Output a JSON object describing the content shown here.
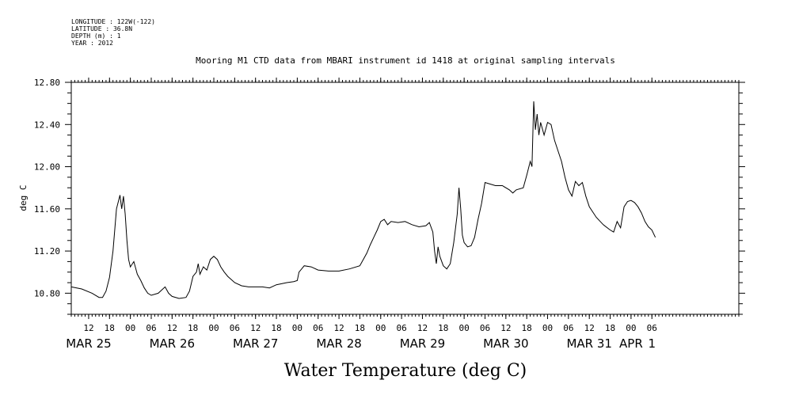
{
  "meta_lines": [
    "LONGITUDE : 122W(-122)",
    "LATITUDE : 36.8N",
    "DEPTH (m) : 1",
    "YEAR : 2012"
  ],
  "chart_data": {
    "type": "line",
    "title": "Mooring M1 CTD data from MBARI instrument id 1418 at original sampling intervals",
    "xlabel": "Water Temperature (deg C)",
    "ylabel": "deg C",
    "xlim": [
      "2012-03-24T07:00",
      "2012-04-01T07:00"
    ],
    "ylim": [
      10.6,
      12.8
    ],
    "yticks": [
      10.8,
      11.2,
      11.6,
      12.0,
      12.4,
      12.8
    ],
    "ytick_labels": [
      "10.80",
      "11.20",
      "11.60",
      "12.00",
      "12.40",
      "12.80"
    ],
    "xticks": [
      {
        "t": "2012-03-24T12:00",
        "label": "12"
      },
      {
        "t": "2012-03-24T18:00",
        "label": "18"
      },
      {
        "t": "2012-03-25T00:00",
        "label": "00"
      },
      {
        "t": "2012-03-25T06:00",
        "label": "06"
      },
      {
        "t": "2012-03-25T12:00",
        "label": "12"
      },
      {
        "t": "2012-03-25T18:00",
        "label": "18"
      },
      {
        "t": "2012-03-26T00:00",
        "label": "00"
      },
      {
        "t": "2012-03-26T06:00",
        "label": "06"
      },
      {
        "t": "2012-03-26T12:00",
        "label": "12"
      },
      {
        "t": "2012-03-26T18:00",
        "label": "18"
      },
      {
        "t": "2012-03-27T00:00",
        "label": "00"
      },
      {
        "t": "2012-03-27T06:00",
        "label": "06"
      },
      {
        "t": "2012-03-27T12:00",
        "label": "12"
      },
      {
        "t": "2012-03-27T18:00",
        "label": "18"
      },
      {
        "t": "2012-03-28T00:00",
        "label": "00"
      },
      {
        "t": "2012-03-28T06:00",
        "label": "06"
      },
      {
        "t": "2012-03-28T12:00",
        "label": "12"
      },
      {
        "t": "2012-03-28T18:00",
        "label": "18"
      },
      {
        "t": "2012-03-29T00:00",
        "label": "00"
      },
      {
        "t": "2012-03-29T06:00",
        "label": "06"
      },
      {
        "t": "2012-03-29T12:00",
        "label": "12"
      },
      {
        "t": "2012-03-29T18:00",
        "label": "18"
      },
      {
        "t": "2012-03-30T00:00",
        "label": "00"
      },
      {
        "t": "2012-03-30T06:00",
        "label": "06"
      },
      {
        "t": "2012-03-30T12:00",
        "label": "12"
      },
      {
        "t": "2012-03-30T18:00",
        "label": "18"
      },
      {
        "t": "2012-03-31T00:00",
        "label": "00"
      },
      {
        "t": "2012-03-31T06:00",
        "label": "06"
      }
    ],
    "day_labels": [
      {
        "t": "2012-03-24T12:00",
        "label": "MAR 25"
      },
      {
        "t": "2012-03-25T12:00",
        "label": "MAR 26"
      },
      {
        "t": "2012-03-26T12:00",
        "label": "MAR 27"
      },
      {
        "t": "2012-03-27T12:00",
        "label": "MAR 28"
      },
      {
        "t": "2012-03-28T12:00",
        "label": "MAR 29"
      },
      {
        "t": "2012-03-29T12:00",
        "label": "MAR 30"
      },
      {
        "t": "2012-03-30T12:00",
        "label": "MAR 31"
      },
      {
        "t": "2012-03-31T00:00",
        "label": "APR"
      },
      {
        "t": "2012-03-31T06:00",
        "label": "1"
      }
    ],
    "grid": false,
    "series": [
      {
        "color": "#000000",
        "points": [
          [
            "2012-03-24T07:00",
            10.86
          ],
          [
            "2012-03-24T10:00",
            10.84
          ],
          [
            "2012-03-24T13:00",
            10.8
          ],
          [
            "2012-03-24T15:00",
            10.76
          ],
          [
            "2012-03-24T16:00",
            10.76
          ],
          [
            "2012-03-24T17:00",
            10.82
          ],
          [
            "2012-03-24T18:00",
            10.95
          ],
          [
            "2012-03-24T19:00",
            11.2
          ],
          [
            "2012-03-24T20:00",
            11.6
          ],
          [
            "2012-03-24T21:00",
            11.73
          ],
          [
            "2012-03-24T21:30",
            11.6
          ],
          [
            "2012-03-24T22:00",
            11.72
          ],
          [
            "2012-03-24T22:30",
            11.55
          ],
          [
            "2012-03-24T23:00",
            11.3
          ],
          [
            "2012-03-24T23:30",
            11.12
          ],
          [
            "2012-03-25T00:00",
            11.05
          ],
          [
            "2012-03-25T01:00",
            11.1
          ],
          [
            "2012-03-25T02:00",
            10.98
          ],
          [
            "2012-03-25T03:00",
            10.92
          ],
          [
            "2012-03-25T04:00",
            10.85
          ],
          [
            "2012-03-25T05:00",
            10.8
          ],
          [
            "2012-03-25T06:00",
            10.78
          ],
          [
            "2012-03-25T08:00",
            10.8
          ],
          [
            "2012-03-25T10:00",
            10.86
          ],
          [
            "2012-03-25T11:00",
            10.8
          ],
          [
            "2012-03-25T12:00",
            10.77
          ],
          [
            "2012-03-25T14:00",
            10.75
          ],
          [
            "2012-03-25T16:00",
            10.76
          ],
          [
            "2012-03-25T17:00",
            10.82
          ],
          [
            "2012-03-25T18:00",
            10.96
          ],
          [
            "2012-03-25T19:00",
            11.0
          ],
          [
            "2012-03-25T19:30",
            11.08
          ],
          [
            "2012-03-25T20:00",
            10.98
          ],
          [
            "2012-03-25T21:00",
            11.05
          ],
          [
            "2012-03-25T22:00",
            11.02
          ],
          [
            "2012-03-25T23:00",
            11.12
          ],
          [
            "2012-03-26T00:00",
            11.15
          ],
          [
            "2012-03-26T01:00",
            11.12
          ],
          [
            "2012-03-26T02:00",
            11.05
          ],
          [
            "2012-03-26T03:00",
            11.0
          ],
          [
            "2012-03-26T04:00",
            10.96
          ],
          [
            "2012-03-26T06:00",
            10.9
          ],
          [
            "2012-03-26T08:00",
            10.87
          ],
          [
            "2012-03-26T10:00",
            10.86
          ],
          [
            "2012-03-26T14:00",
            10.86
          ],
          [
            "2012-03-26T16:00",
            10.85
          ],
          [
            "2012-03-26T18:00",
            10.88
          ],
          [
            "2012-03-26T21:00",
            10.9
          ],
          [
            "2012-03-26T23:00",
            10.91
          ],
          [
            "2012-03-27T00:00",
            10.92
          ],
          [
            "2012-03-27T00:30",
            11.0
          ],
          [
            "2012-03-27T02:00",
            11.06
          ],
          [
            "2012-03-27T04:00",
            11.05
          ],
          [
            "2012-03-27T06:00",
            11.02
          ],
          [
            "2012-03-27T09:00",
            11.01
          ],
          [
            "2012-03-27T12:00",
            11.01
          ],
          [
            "2012-03-27T15:00",
            11.03
          ],
          [
            "2012-03-27T18:00",
            11.06
          ],
          [
            "2012-03-27T19:00",
            11.12
          ],
          [
            "2012-03-27T20:00",
            11.18
          ],
          [
            "2012-03-27T21:00",
            11.26
          ],
          [
            "2012-03-27T22:00",
            11.33
          ],
          [
            "2012-03-27T23:00",
            11.4
          ],
          [
            "2012-03-28T00:00",
            11.48
          ],
          [
            "2012-03-28T01:00",
            11.5
          ],
          [
            "2012-03-28T02:00",
            11.45
          ],
          [
            "2012-03-28T03:00",
            11.48
          ],
          [
            "2012-03-28T05:00",
            11.47
          ],
          [
            "2012-03-28T07:00",
            11.48
          ],
          [
            "2012-03-28T09:00",
            11.45
          ],
          [
            "2012-03-28T11:00",
            11.43
          ],
          [
            "2012-03-28T13:00",
            11.44
          ],
          [
            "2012-03-28T14:00",
            11.47
          ],
          [
            "2012-03-28T15:00",
            11.38
          ],
          [
            "2012-03-28T15:30",
            11.2
          ],
          [
            "2012-03-28T16:00",
            11.08
          ],
          [
            "2012-03-28T16:30",
            11.24
          ],
          [
            "2012-03-28T17:00",
            11.15
          ],
          [
            "2012-03-28T18:00",
            11.06
          ],
          [
            "2012-03-28T19:00",
            11.03
          ],
          [
            "2012-03-28T20:00",
            11.08
          ],
          [
            "2012-03-28T21:00",
            11.28
          ],
          [
            "2012-03-28T22:00",
            11.55
          ],
          [
            "2012-03-28T22:30",
            11.8
          ],
          [
            "2012-03-28T23:00",
            11.6
          ],
          [
            "2012-03-28T23:30",
            11.35
          ],
          [
            "2012-03-29T00:00",
            11.28
          ],
          [
            "2012-03-29T01:00",
            11.24
          ],
          [
            "2012-03-29T02:00",
            11.25
          ],
          [
            "2012-03-29T03:00",
            11.33
          ],
          [
            "2012-03-29T04:00",
            11.5
          ],
          [
            "2012-03-29T05:00",
            11.65
          ],
          [
            "2012-03-29T06:00",
            11.85
          ],
          [
            "2012-03-29T07:00",
            11.84
          ],
          [
            "2012-03-29T09:00",
            11.82
          ],
          [
            "2012-03-29T11:00",
            11.82
          ],
          [
            "2012-03-29T13:00",
            11.78
          ],
          [
            "2012-03-29T14:00",
            11.75
          ],
          [
            "2012-03-29T15:00",
            11.78
          ],
          [
            "2012-03-29T17:00",
            11.8
          ],
          [
            "2012-03-29T18:00",
            11.92
          ],
          [
            "2012-03-29T19:00",
            12.05
          ],
          [
            "2012-03-29T19:30",
            12.0
          ],
          [
            "2012-03-29T20:00",
            12.62
          ],
          [
            "2012-03-29T20:30",
            12.35
          ],
          [
            "2012-03-29T21:00",
            12.5
          ],
          [
            "2012-03-29T21:30",
            12.3
          ],
          [
            "2012-03-29T22:00",
            12.42
          ],
          [
            "2012-03-29T23:00",
            12.3
          ],
          [
            "2012-03-30T00:00",
            12.42
          ],
          [
            "2012-03-30T01:00",
            12.4
          ],
          [
            "2012-03-30T02:00",
            12.25
          ],
          [
            "2012-03-30T03:00",
            12.15
          ],
          [
            "2012-03-30T04:00",
            12.05
          ],
          [
            "2012-03-30T05:00",
            11.9
          ],
          [
            "2012-03-30T06:00",
            11.78
          ],
          [
            "2012-03-30T07:00",
            11.72
          ],
          [
            "2012-03-30T08:00",
            11.86
          ],
          [
            "2012-03-30T09:00",
            11.82
          ],
          [
            "2012-03-30T10:00",
            11.85
          ],
          [
            "2012-03-30T11:00",
            11.72
          ],
          [
            "2012-03-30T12:00",
            11.62
          ],
          [
            "2012-03-30T14:00",
            11.52
          ],
          [
            "2012-03-30T16:00",
            11.45
          ],
          [
            "2012-03-30T18:00",
            11.4
          ],
          [
            "2012-03-30T19:00",
            11.38
          ],
          [
            "2012-03-30T20:00",
            11.48
          ],
          [
            "2012-03-30T21:00",
            11.42
          ],
          [
            "2012-03-30T22:00",
            11.62
          ],
          [
            "2012-03-30T23:00",
            11.67
          ],
          [
            "2012-03-31T00:00",
            11.68
          ],
          [
            "2012-03-31T01:00",
            11.66
          ],
          [
            "2012-03-31T02:00",
            11.62
          ],
          [
            "2012-03-31T03:00",
            11.56
          ],
          [
            "2012-03-31T04:00",
            11.48
          ],
          [
            "2012-03-31T05:00",
            11.43
          ],
          [
            "2012-03-31T06:00",
            11.4
          ],
          [
            "2012-03-31T07:00",
            11.33
          ]
        ]
      }
    ]
  }
}
